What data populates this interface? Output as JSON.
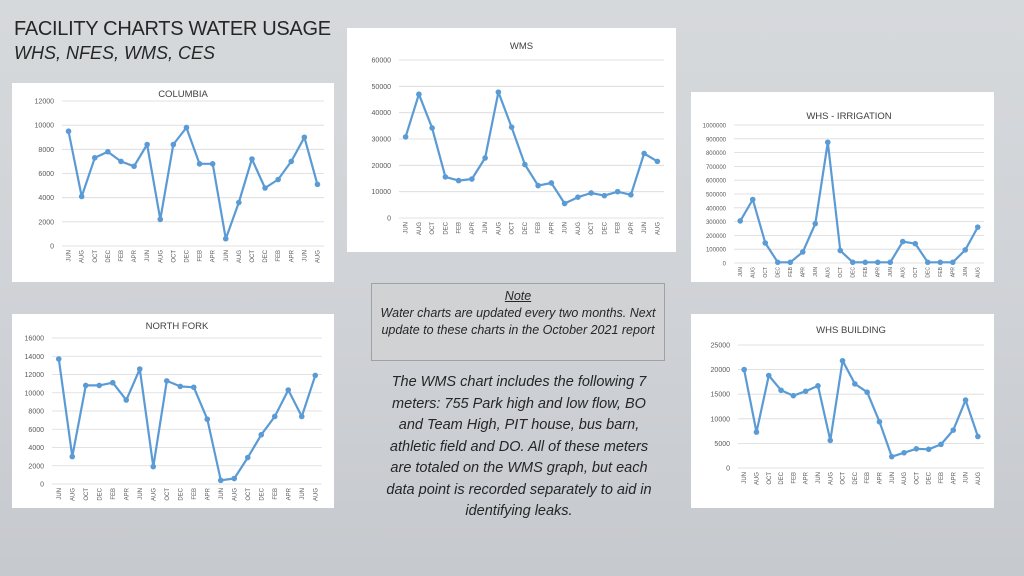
{
  "page": {
    "title": "FACILITY CHARTS WATER USAGE",
    "subtitle": "WHS, NFES, WMS, CES"
  },
  "note": {
    "heading": "Note",
    "body": "Water charts are updated every two months. Next update to these charts in the October 2021 report"
  },
  "description": "The WMS chart includes the following 7 meters: 755 Park high and low flow, BO and Team High, PIT house, bus barn, athletic field and DO. All of these meters are totaled on the WMS graph, but each data point is recorded separately to aid in identifying leaks.",
  "colors": {
    "line": "#5b9bd5",
    "grid": "#d9d9d9",
    "text": "#595959"
  },
  "chart_data": [
    {
      "type": "line",
      "title": "COLUMBIA",
      "xlabel": "",
      "ylabel": "",
      "grid": true,
      "ylim": [
        0,
        12000
      ],
      "yticks": [
        0,
        2000,
        4000,
        6000,
        8000,
        10000,
        12000
      ],
      "categories": [
        "JUN",
        "AUG",
        "OCT",
        "DEC",
        "FEB",
        "APR",
        "JUN",
        "AUG",
        "OCT",
        "DEC",
        "FEB",
        "APR",
        "JUN",
        "AUG",
        "OCT",
        "DEC",
        "FEB",
        "APR",
        "JUN",
        "AUG"
      ],
      "values": [
        9500,
        4100,
        7300,
        7800,
        7000,
        6600,
        8400,
        2200,
        8400,
        9800,
        6800,
        6800,
        600,
        3600,
        7200,
        4800,
        5500,
        7000,
        9000,
        5100
      ]
    },
    {
      "type": "line",
      "title": "WMS",
      "xlabel": "",
      "ylabel": "",
      "grid": true,
      "ylim": [
        0,
        60000
      ],
      "yticks": [
        0,
        10000,
        20000,
        30000,
        40000,
        50000,
        60000
      ],
      "categories": [
        "JUN",
        "AUG",
        "OCT",
        "DEC",
        "FEB",
        "APR",
        "JUN",
        "AUG",
        "OCT",
        "DEC",
        "FEB",
        "APR",
        "JUN",
        "AUG",
        "OCT",
        "DEC",
        "FEB",
        "APR",
        "JUN",
        "AUG"
      ],
      "values": [
        30800,
        47000,
        34200,
        15600,
        14200,
        14800,
        22800,
        47800,
        34500,
        20300,
        12300,
        13300,
        5500,
        7900,
        9500,
        8500,
        10000,
        8800,
        24500,
        21500
      ]
    },
    {
      "type": "line",
      "title": "WHS - IRRIGATION",
      "xlabel": "",
      "ylabel": "",
      "grid": true,
      "ylim": [
        0,
        1000000
      ],
      "yticks": [
        0,
        100000,
        200000,
        300000,
        400000,
        500000,
        600000,
        700000,
        800000,
        900000,
        1000000
      ],
      "categories": [
        "JUN",
        "AUG",
        "OCT",
        "DEC",
        "FEB",
        "APR",
        "JUN",
        "AUG",
        "OCT",
        "DEC",
        "FEB",
        "APR",
        "JUN",
        "AUG",
        "OCT",
        "DEC",
        "FEB",
        "APR",
        "JUN",
        "AUG"
      ],
      "values": [
        305000,
        460000,
        145000,
        5000,
        5000,
        80000,
        285000,
        875000,
        90000,
        5000,
        5000,
        5000,
        5000,
        155000,
        140000,
        5000,
        5000,
        5000,
        95000,
        260000
      ]
    },
    {
      "type": "line",
      "title": "NORTH FORK",
      "xlabel": "",
      "ylabel": "",
      "grid": true,
      "ylim": [
        0,
        16000
      ],
      "yticks": [
        0,
        2000,
        4000,
        6000,
        8000,
        10000,
        12000,
        14000,
        16000
      ],
      "categories": [
        "JUN",
        "AUG",
        "OCT",
        "DEC",
        "FEB",
        "APR",
        "JUN",
        "AUG",
        "OCT",
        "DEC",
        "FEB",
        "APR",
        "JUN",
        "AUG",
        "OCT",
        "DEC",
        "FEB",
        "APR",
        "JUN",
        "AUG"
      ],
      "values": [
        13700,
        3000,
        10800,
        10800,
        11100,
        9200,
        12600,
        1900,
        11300,
        10700,
        10600,
        7100,
        400,
        600,
        2900,
        5400,
        7400,
        10300,
        7400,
        11900
      ]
    },
    {
      "type": "line",
      "title": "WHS BUILDING",
      "xlabel": "",
      "ylabel": "",
      "grid": true,
      "ylim": [
        0,
        25000
      ],
      "yticks": [
        0,
        5000,
        10000,
        15000,
        20000,
        25000
      ],
      "categories": [
        "JUN",
        "AUG",
        "OCT",
        "DEC",
        "FEB",
        "APR",
        "JUN",
        "AUG",
        "OCT",
        "DEC",
        "FEB",
        "APR",
        "JUN",
        "AUG",
        "OCT",
        "DEC",
        "FEB",
        "APR",
        "JUN",
        "AUG"
      ],
      "values": [
        20000,
        7300,
        18800,
        15800,
        14700,
        15600,
        16700,
        5600,
        21800,
        17100,
        15400,
        9400,
        2300,
        3100,
        3900,
        3800,
        4800,
        7700,
        13800,
        6400
      ]
    }
  ]
}
